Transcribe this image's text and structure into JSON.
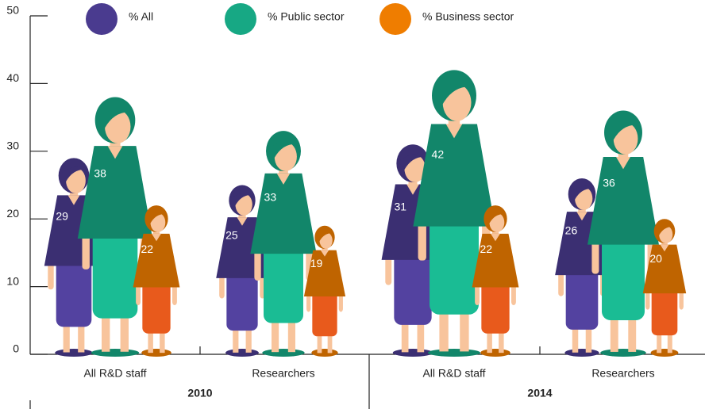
{
  "chart_data": {
    "type": "pictograph",
    "categories": [
      "All R&D staff",
      "Researchers",
      "All R&D staff",
      "Researchers"
    ],
    "groups": [
      "2010",
      "2014"
    ],
    "series": [
      {
        "name": "% All",
        "color": "#4a3b8f",
        "values": [
          29,
          25,
          31,
          26
        ]
      },
      {
        "name": "% Public sector",
        "color": "#17a884",
        "values": [
          38,
          33,
          42,
          36
        ]
      },
      {
        "name": "% Business sector",
        "color": "#ef7d00",
        "values": [
          22,
          19,
          22,
          20
        ]
      }
    ],
    "ylim": [
      0,
      50
    ],
    "yticks": [
      0,
      10,
      20,
      30,
      40,
      50
    ],
    "grid": false
  }
}
